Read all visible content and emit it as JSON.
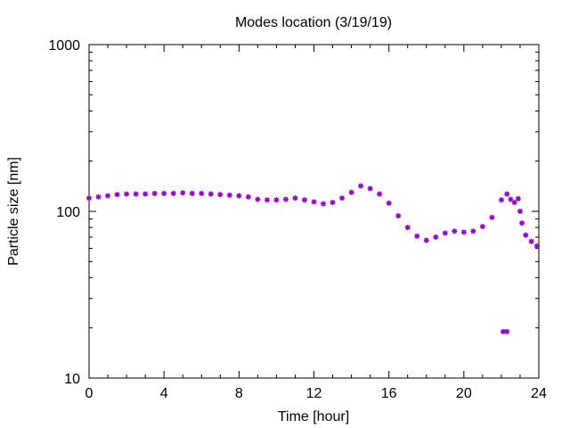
{
  "chart_data": {
    "type": "scatter",
    "title": "Modes location (3/19/19)",
    "xlabel": "Time [hour]",
    "ylabel": "Particle size [nm]",
    "xlim": [
      0,
      24
    ],
    "ylim": [
      10,
      1000
    ],
    "y_scale": "log",
    "x_ticks": [
      0,
      4,
      8,
      12,
      16,
      20,
      24
    ],
    "x_tick_labels": [
      "0",
      "4",
      "8",
      "12",
      "16",
      "20",
      "24"
    ],
    "y_ticks": [
      10,
      100,
      1000
    ],
    "y_tick_labels": [
      "10",
      "100",
      "1000"
    ],
    "grid": false,
    "legend": "none",
    "marker": "star",
    "series": [
      {
        "color": "#9400d3",
        "points": [
          [
            0.0,
            120
          ],
          [
            0.5,
            122
          ],
          [
            1.0,
            124
          ],
          [
            1.5,
            126
          ],
          [
            2.0,
            127
          ],
          [
            2.5,
            127
          ],
          [
            3.0,
            127
          ],
          [
            3.5,
            128
          ],
          [
            4.0,
            128
          ],
          [
            4.5,
            128
          ],
          [
            5.0,
            129
          ],
          [
            5.5,
            128
          ],
          [
            6.0,
            128
          ],
          [
            6.5,
            127
          ],
          [
            7.0,
            126
          ],
          [
            7.5,
            125
          ],
          [
            8.0,
            124
          ],
          [
            8.5,
            122
          ],
          [
            9.0,
            118
          ],
          [
            9.5,
            117
          ],
          [
            10.0,
            117
          ],
          [
            10.5,
            118
          ],
          [
            11.0,
            120
          ],
          [
            11.5,
            117
          ],
          [
            12.0,
            114
          ],
          [
            12.5,
            111
          ],
          [
            13.0,
            113
          ],
          [
            13.5,
            120
          ],
          [
            14.0,
            130
          ],
          [
            14.5,
            142
          ],
          [
            15.0,
            137
          ],
          [
            15.5,
            127
          ],
          [
            16.0,
            112
          ],
          [
            16.5,
            94
          ],
          [
            17.0,
            80
          ],
          [
            17.5,
            71
          ],
          [
            18.0,
            67
          ],
          [
            18.5,
            70
          ],
          [
            19.0,
            74
          ],
          [
            19.5,
            76
          ],
          [
            20.0,
            75
          ],
          [
            20.5,
            76
          ],
          [
            21.0,
            81
          ],
          [
            21.5,
            92
          ],
          [
            22.0,
            117
          ],
          [
            22.3,
            127
          ],
          [
            22.5,
            118
          ],
          [
            22.7,
            113
          ],
          [
            22.9,
            119
          ],
          [
            23.0,
            100
          ],
          [
            23.1,
            85
          ],
          [
            23.3,
            72
          ],
          [
            23.6,
            66
          ],
          [
            23.9,
            62
          ],
          [
            22.1,
            19
          ],
          [
            22.3,
            19
          ]
        ]
      }
    ]
  }
}
